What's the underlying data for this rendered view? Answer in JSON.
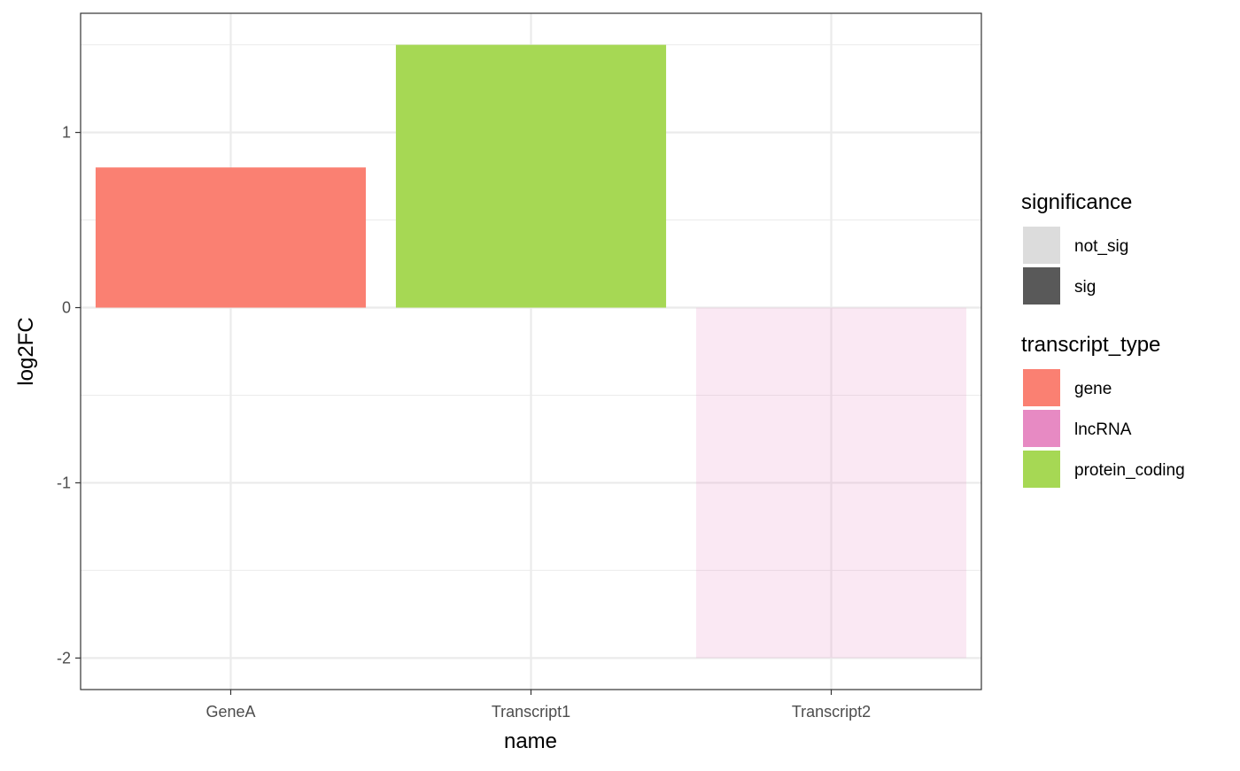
{
  "chart_data": {
    "type": "bar",
    "xlabel": "name",
    "ylabel": "log2FC",
    "categories": [
      "GeneA",
      "Transcript1",
      "Transcript2"
    ],
    "values": [
      0.8,
      1.5,
      -2
    ],
    "transcript_type": [
      "gene",
      "protein_coding",
      "lncRNA"
    ],
    "significance": [
      "sig",
      "sig",
      "not_sig"
    ],
    "ylim": [
      -2.18,
      1.68
    ],
    "yticks": [
      -2,
      -1,
      0,
      1
    ],
    "ytick_labels": [
      "-2",
      "-1",
      "0",
      "1"
    ],
    "grid": true,
    "legend_position": "right",
    "legends": [
      {
        "title": "significance",
        "items": [
          {
            "label": "not_sig",
            "color": "#dcdcdc"
          },
          {
            "label": "sig",
            "color": "#595959"
          }
        ]
      },
      {
        "title": "transcript_type",
        "items": [
          {
            "label": "gene",
            "color": "#fa8072"
          },
          {
            "label": "lncRNA",
            "color": "#e78ac3"
          },
          {
            "label": "protein_coding",
            "color": "#a6d854"
          }
        ]
      }
    ],
    "bar_colors": {
      "gene": "#fa8072",
      "lncRNA": "#e78ac3",
      "protein_coding": "#a6d854"
    },
    "significance_alpha": {
      "sig": 1,
      "not_sig": 0.2
    }
  }
}
